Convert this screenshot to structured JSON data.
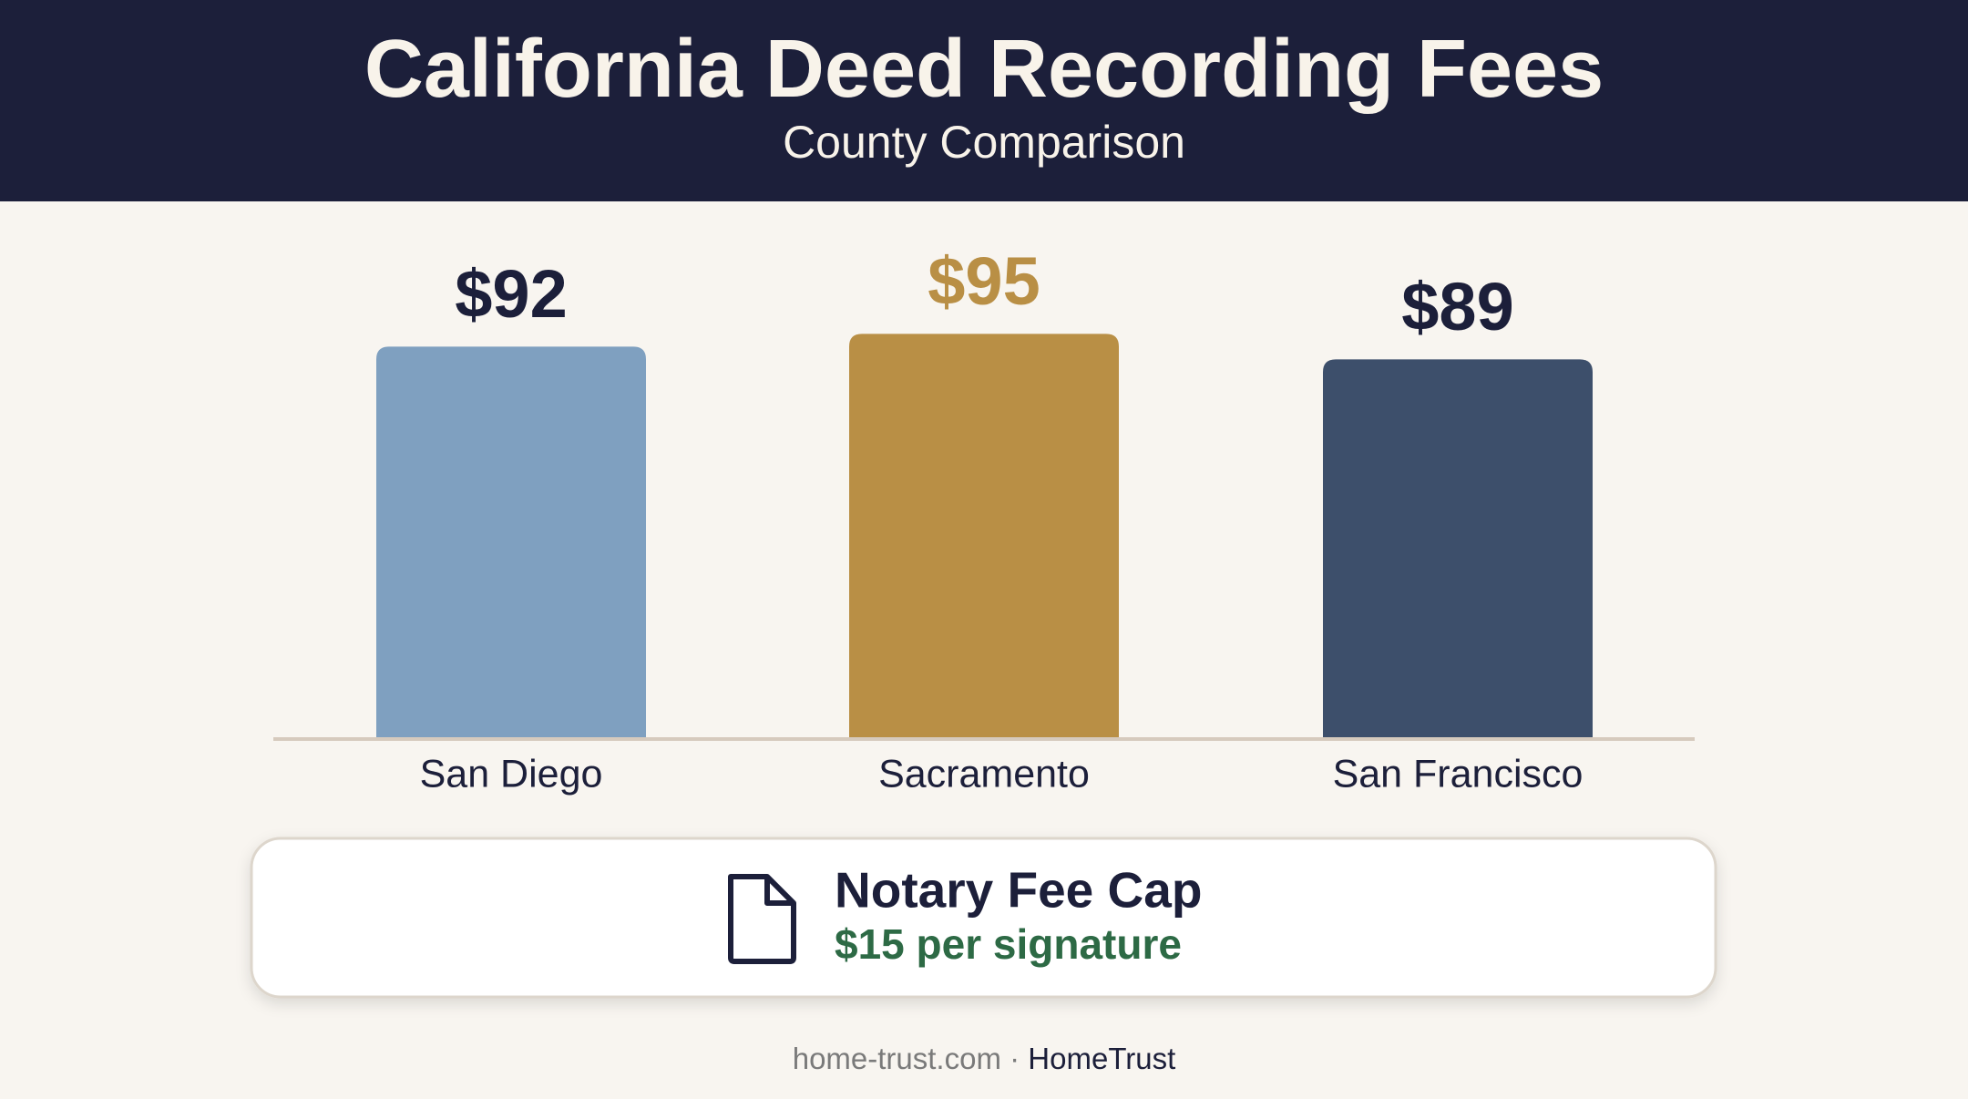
{
  "header": {
    "title": "California Deed Recording Fees",
    "subtitle": "County Comparison"
  },
  "chart_data": {
    "type": "bar",
    "categories": [
      "San Diego",
      "Sacramento",
      "San Francisco"
    ],
    "values": [
      92,
      95,
      89
    ],
    "value_labels": [
      "$92",
      "$95",
      "$89"
    ],
    "colors": [
      "#7fa0c0",
      "#b98f45",
      "#3d4f6b"
    ],
    "value_label_colors": [
      "#1c1f3a",
      "#b98f45",
      "#1c1f3a"
    ]
  },
  "note": {
    "title": "Notary Fee Cap",
    "text": "$15 per signature"
  },
  "footer": {
    "site": "home-trust.com",
    "separator": "·",
    "brand": "HomeTrust"
  }
}
